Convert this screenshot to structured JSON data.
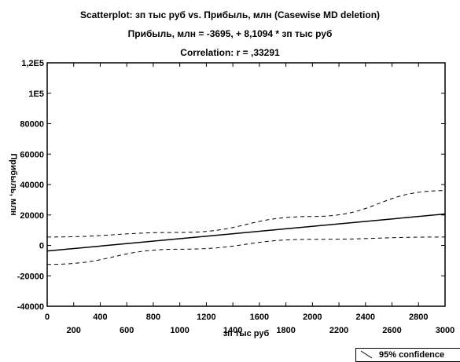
{
  "chart_data": {
    "type": "scatter",
    "title": "Scatterplot: зп тыс руб vs. Прибыль, млн (Casewise MD deletion)",
    "subtitle": "Прибыль, млн = -3695, + 8,1094 * зп тыс руб",
    "correlation_text": "Correlation: r = ,33291",
    "xlabel": "зп тыс руб",
    "ylabel": "Прибыль, млн",
    "xlim": [
      0,
      3000
    ],
    "ylim": [
      -40000,
      120000
    ],
    "x_ticks_upper": [
      "0",
      "400",
      "800",
      "1200",
      "1600",
      "2000",
      "2400",
      "2800"
    ],
    "x_ticks_lower": [
      "200",
      "600",
      "1000",
      "1400",
      "1800",
      "2200",
      "2600",
      "3000"
    ],
    "y_ticks": [
      "1,2E5",
      "1E5",
      "80000",
      "60000",
      "40000",
      "20000",
      "0",
      "-20000",
      "-40000"
    ],
    "regression": {
      "intercept": -3695,
      "slope": 8.1094
    },
    "confidence_band": {
      "x": [
        0,
        1000,
        2000,
        3000
      ],
      "upper": [
        5500,
        8500,
        19000,
        36000
      ],
      "lower": [
        -12500,
        -2500,
        4000,
        5500
      ]
    },
    "legend": [
      "95% confidence"
    ],
    "grid": false
  }
}
